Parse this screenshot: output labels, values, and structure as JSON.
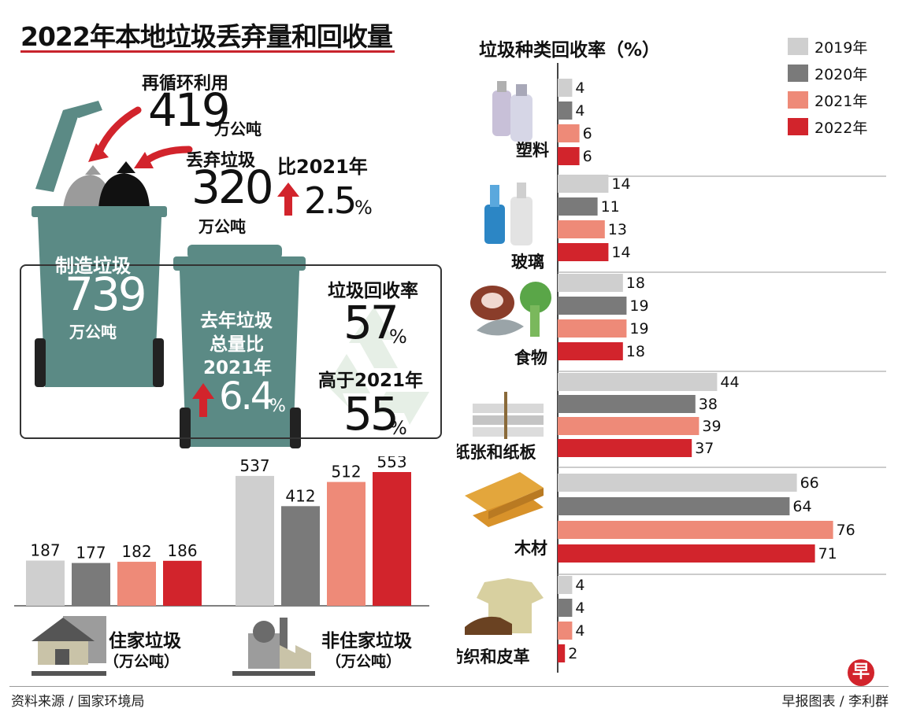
{
  "title": "2022年本地垃圾丢弃量和回收量",
  "summary": {
    "recycled_label": "再循环利用",
    "recycled_value": "419",
    "recycled_unit": "万公吨",
    "disposed_label": "丢弃垃圾",
    "disposed_value": "320",
    "disposed_unit": "万公吨",
    "disposed_change_label": "比2021年",
    "disposed_change_value": "2.5",
    "percent_sign": "%",
    "generated_label": "制造垃圾",
    "generated_value": "739",
    "generated_unit": "万公吨",
    "total_change_line1": "去年垃圾",
    "total_change_line2": "总量比",
    "total_change_line3": "2021年",
    "total_change_value": "6.4",
    "recycle_rate_label": "垃圾回收率",
    "recycle_rate_value": "57",
    "prev_rate_label": "高于2021年",
    "prev_rate_value": "55"
  },
  "colors": {
    "y2019": "#cfcfcf",
    "y2020": "#7a7a7a",
    "y2021": "#ee8a78",
    "y2022": "#d2242c",
    "bin": "#5b8a85",
    "accent": "#c8232c"
  },
  "chart_data": [
    {
      "type": "bar",
      "orientation": "horizontal",
      "title": "垃圾种类回收率（%）",
      "categories": [
        "塑料",
        "玻璃",
        "食物",
        "纸张和纸板",
        "木材",
        "纺织和皮革"
      ],
      "series": [
        {
          "name": "2019年",
          "values": [
            4,
            14,
            18,
            44,
            66,
            4
          ]
        },
        {
          "name": "2020年",
          "values": [
            4,
            11,
            19,
            38,
            64,
            4
          ]
        },
        {
          "name": "2021年",
          "values": [
            6,
            13,
            19,
            39,
            76,
            4
          ]
        },
        {
          "name": "2022年",
          "values": [
            6,
            14,
            18,
            37,
            71,
            2
          ]
        }
      ],
      "xlim": [
        0,
        80
      ],
      "legend": "top-right",
      "grid": false
    },
    {
      "type": "bar",
      "title": "住家垃圾",
      "unit": "（万公吨）",
      "categories": [
        "2019年",
        "2020年",
        "2021年",
        "2022年"
      ],
      "values": [
        187,
        177,
        182,
        186
      ],
      "ylim": [
        0,
        600
      ]
    },
    {
      "type": "bar",
      "title": "非住家垃圾",
      "unit": "（万公吨）",
      "categories": [
        "2019年",
        "2020年",
        "2021年",
        "2022年"
      ],
      "values": [
        537,
        412,
        512,
        553
      ],
      "ylim": [
        0,
        600
      ]
    }
  ],
  "footer": {
    "source": "资料来源 / 国家环境局",
    "credit": "早报图表 / 李利群",
    "logo": "早"
  }
}
